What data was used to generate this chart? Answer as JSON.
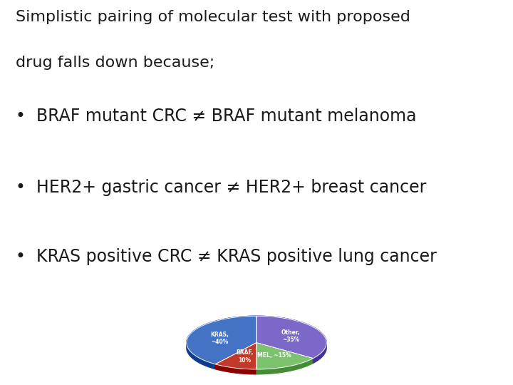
{
  "title_line1": "Simplistic pairing of molecular test with proposed",
  "title_line2": "drug falls down because;",
  "bullet1": "•  BRAF mutant CRC ≠ BRAF mutant melanoma",
  "bullet2": "•  HER2+ gastric cancer ≠ HER2+ breast cancer",
  "bullet3": "•  KRAS positive CRC ≠ KRAS positive lung cancer",
  "pie_labels": [
    "KRAS,\n~40%",
    "BRAF,\n10%",
    "MEL, ~15%",
    "Other,\n~35%"
  ],
  "pie_sizes": [
    40,
    10,
    15,
    35
  ],
  "pie_colors": [
    "#4472C4",
    "#C0392B",
    "#7DC26E",
    "#7B68C8"
  ],
  "bg_color": "#FFFFFF",
  "text_color": "#1A1A1A",
  "title_fontsize": 16,
  "bullet_fontsize": 17
}
